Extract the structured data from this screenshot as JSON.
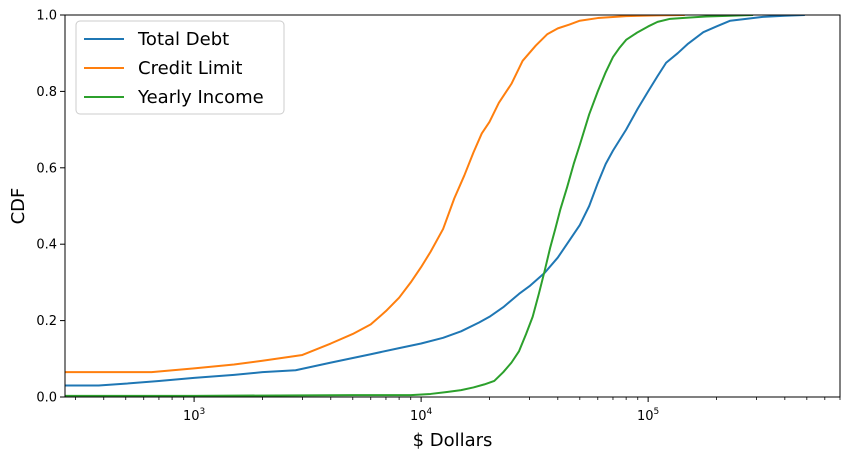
{
  "chart_data": {
    "type": "line",
    "xscale": "log",
    "xlabel": "$ Dollars",
    "ylabel": "CDF",
    "xlim": [
      270,
      700000
    ],
    "ylim": [
      0,
      1.0
    ],
    "grid": false,
    "legend_position": "top-left",
    "x_ticks": [
      {
        "value": 1000,
        "base": "10",
        "exp": "3"
      },
      {
        "value": 10000,
        "base": "10",
        "exp": "4"
      },
      {
        "value": 100000,
        "base": "10",
        "exp": "5"
      }
    ],
    "y_ticks": [
      {
        "value": 0.0,
        "label": "0.0"
      },
      {
        "value": 0.2,
        "label": "0.2"
      },
      {
        "value": 0.4,
        "label": "0.4"
      },
      {
        "value": 0.6,
        "label": "0.6"
      },
      {
        "value": 0.8,
        "label": "0.8"
      },
      {
        "value": 1.0,
        "label": "1.0"
      }
    ],
    "series": [
      {
        "name": "Total Debt",
        "color": "#1f77b4",
        "points": [
          [
            270,
            0.03
          ],
          [
            380,
            0.03
          ],
          [
            500,
            0.035
          ],
          [
            700,
            0.042
          ],
          [
            1000,
            0.05
          ],
          [
            1500,
            0.058
          ],
          [
            2000,
            0.065
          ],
          [
            2800,
            0.07
          ],
          [
            4000,
            0.09
          ],
          [
            6000,
            0.112
          ],
          [
            8000,
            0.128
          ],
          [
            10000,
            0.14
          ],
          [
            12500,
            0.155
          ],
          [
            15000,
            0.172
          ],
          [
            18000,
            0.195
          ],
          [
            20000,
            0.21
          ],
          [
            23000,
            0.235
          ],
          [
            27000,
            0.27
          ],
          [
            30000,
            0.29
          ],
          [
            35000,
            0.325
          ],
          [
            40000,
            0.365
          ],
          [
            45000,
            0.41
          ],
          [
            50000,
            0.45
          ],
          [
            55000,
            0.5
          ],
          [
            60000,
            0.56
          ],
          [
            65000,
            0.61
          ],
          [
            70000,
            0.645
          ],
          [
            80000,
            0.7
          ],
          [
            90000,
            0.755
          ],
          [
            100000,
            0.8
          ],
          [
            110000,
            0.84
          ],
          [
            120000,
            0.875
          ],
          [
            135000,
            0.9
          ],
          [
            150000,
            0.925
          ],
          [
            175000,
            0.955
          ],
          [
            200000,
            0.97
          ],
          [
            230000,
            0.985
          ],
          [
            270000,
            0.99
          ],
          [
            320000,
            0.995
          ],
          [
            400000,
            0.998
          ],
          [
            490000,
            1.0
          ]
        ]
      },
      {
        "name": "Credit Limit",
        "color": "#ff7f0e",
        "points": [
          [
            270,
            0.065
          ],
          [
            400,
            0.065
          ],
          [
            650,
            0.065
          ],
          [
            1000,
            0.075
          ],
          [
            1500,
            0.085
          ],
          [
            2000,
            0.095
          ],
          [
            3000,
            0.11
          ],
          [
            4000,
            0.14
          ],
          [
            5000,
            0.165
          ],
          [
            6000,
            0.19
          ],
          [
            7000,
            0.225
          ],
          [
            8000,
            0.26
          ],
          [
            9000,
            0.3
          ],
          [
            10000,
            0.34
          ],
          [
            11000,
            0.38
          ],
          [
            12500,
            0.44
          ],
          [
            14000,
            0.52
          ],
          [
            15500,
            0.58
          ],
          [
            17000,
            0.64
          ],
          [
            18500,
            0.69
          ],
          [
            20000,
            0.72
          ],
          [
            22000,
            0.77
          ],
          [
            25000,
            0.82
          ],
          [
            28000,
            0.88
          ],
          [
            32000,
            0.92
          ],
          [
            36000,
            0.95
          ],
          [
            40000,
            0.965
          ],
          [
            45000,
            0.975
          ],
          [
            50000,
            0.985
          ],
          [
            60000,
            0.992
          ],
          [
            80000,
            0.997
          ],
          [
            110000,
            0.999
          ],
          [
            145000,
            1.0
          ]
        ]
      },
      {
        "name": "Yearly Income",
        "color": "#2ca02c",
        "points": [
          [
            270,
            0.003
          ],
          [
            1000,
            0.003
          ],
          [
            5000,
            0.005
          ],
          [
            9000,
            0.005
          ],
          [
            11000,
            0.008
          ],
          [
            13000,
            0.013
          ],
          [
            15000,
            0.018
          ],
          [
            17000,
            0.025
          ],
          [
            19000,
            0.033
          ],
          [
            21000,
            0.042
          ],
          [
            23000,
            0.065
          ],
          [
            25000,
            0.09
          ],
          [
            27000,
            0.12
          ],
          [
            29000,
            0.165
          ],
          [
            31000,
            0.21
          ],
          [
            33000,
            0.27
          ],
          [
            35000,
            0.33
          ],
          [
            37000,
            0.39
          ],
          [
            39000,
            0.44
          ],
          [
            41000,
            0.49
          ],
          [
            44000,
            0.55
          ],
          [
            47000,
            0.61
          ],
          [
            50000,
            0.66
          ],
          [
            55000,
            0.74
          ],
          [
            60000,
            0.8
          ],
          [
            65000,
            0.85
          ],
          [
            70000,
            0.89
          ],
          [
            75000,
            0.915
          ],
          [
            80000,
            0.935
          ],
          [
            90000,
            0.955
          ],
          [
            100000,
            0.97
          ],
          [
            110000,
            0.982
          ],
          [
            125000,
            0.99
          ],
          [
            150000,
            0.993
          ],
          [
            180000,
            0.996
          ],
          [
            230000,
            0.998
          ],
          [
            290000,
            1.0
          ]
        ]
      }
    ]
  }
}
